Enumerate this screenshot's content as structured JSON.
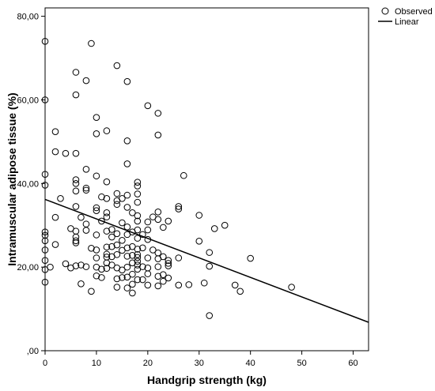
{
  "chart_data": {
    "type": "scatter",
    "xlabel": "Handgrip strength (kg)",
    "ylabel": "Intramuscular adipose tissue (%)",
    "xlim": [
      0,
      63
    ],
    "ylim": [
      0,
      82
    ],
    "x_ticks": [
      0,
      10,
      20,
      30,
      40,
      50,
      60
    ],
    "x_tick_labels": [
      "0",
      "10",
      "20",
      "30",
      "40",
      "50",
      "60"
    ],
    "y_ticks": [
      0,
      20,
      40,
      60,
      80
    ],
    "y_tick_labels": [
      ",00",
      "20,00",
      "40,00",
      "60,00",
      "80,00"
    ],
    "grid": false,
    "legend_position": "top-right, outside plot",
    "series": [
      {
        "name": "Observed",
        "kind": "markers",
        "marker": "open-circle",
        "points": [
          [
            0,
            74.0
          ],
          [
            0,
            60.0
          ],
          [
            0,
            42.2
          ],
          [
            0,
            39.6
          ],
          [
            0,
            28.4
          ],
          [
            0,
            27.6
          ],
          [
            0,
            26.3
          ],
          [
            0,
            24.1
          ],
          [
            0,
            21.6
          ],
          [
            0,
            19.4
          ],
          [
            0,
            16.4
          ],
          [
            1,
            20.0
          ],
          [
            2,
            52.4
          ],
          [
            2,
            47.6
          ],
          [
            2,
            31.9
          ],
          [
            2,
            25.4
          ],
          [
            3,
            36.4
          ],
          [
            4,
            47.2
          ],
          [
            4,
            20.8
          ],
          [
            5,
            29.2
          ],
          [
            5,
            19.8
          ],
          [
            6,
            61.2
          ],
          [
            6,
            66.6
          ],
          [
            6,
            47.2
          ],
          [
            6,
            40.9
          ],
          [
            6,
            40.0
          ],
          [
            6,
            38.2
          ],
          [
            6,
            34.5
          ],
          [
            6,
            28.6
          ],
          [
            6,
            27.2
          ],
          [
            6,
            26.3
          ],
          [
            6,
            25.8
          ],
          [
            6,
            20.3
          ],
          [
            7,
            31.9
          ],
          [
            7,
            20.5
          ],
          [
            7,
            16.0
          ],
          [
            8,
            64.6
          ],
          [
            8,
            43.4
          ],
          [
            8,
            38.9
          ],
          [
            8,
            38.4
          ],
          [
            8,
            30.3
          ],
          [
            8,
            28.8
          ],
          [
            8,
            20.1
          ],
          [
            9,
            73.5
          ],
          [
            9,
            24.5
          ],
          [
            9,
            14.2
          ],
          [
            10,
            55.8
          ],
          [
            10,
            51.9
          ],
          [
            10,
            41.8
          ],
          [
            10,
            34.2
          ],
          [
            10,
            33.5
          ],
          [
            10,
            27.7
          ],
          [
            10,
            24.1
          ],
          [
            10,
            22.2
          ],
          [
            10,
            20.0
          ],
          [
            10,
            17.9
          ],
          [
            11,
            36.8
          ],
          [
            11,
            31.0
          ],
          [
            11,
            19.5
          ],
          [
            11,
            17.5
          ],
          [
            12,
            52.6
          ],
          [
            12,
            40.4
          ],
          [
            12,
            36.4
          ],
          [
            12,
            33.0
          ],
          [
            12,
            32.0
          ],
          [
            12,
            28.6
          ],
          [
            12,
            24.8
          ],
          [
            12,
            23.1
          ],
          [
            12,
            22.4
          ],
          [
            12,
            21.0
          ],
          [
            12,
            19.7
          ],
          [
            13,
            29.0
          ],
          [
            13,
            27.2
          ],
          [
            13,
            24.9
          ],
          [
            13,
            22.5
          ],
          [
            13,
            20.5
          ],
          [
            14,
            68.2
          ],
          [
            14,
            37.6
          ],
          [
            14,
            35.9
          ],
          [
            14,
            35.0
          ],
          [
            14,
            28.0
          ],
          [
            14,
            25.3
          ],
          [
            14,
            23.0
          ],
          [
            14,
            19.8
          ],
          [
            14,
            17.2
          ],
          [
            14,
            15.2
          ],
          [
            15,
            36.4
          ],
          [
            15,
            30.6
          ],
          [
            15,
            26.4
          ],
          [
            15,
            24.0
          ],
          [
            15,
            19.3
          ],
          [
            15,
            17.5
          ],
          [
            16,
            64.4
          ],
          [
            16,
            50.2
          ],
          [
            16,
            44.7
          ],
          [
            16,
            37.2
          ],
          [
            16,
            34.3
          ],
          [
            16,
            29.6
          ],
          [
            16,
            27.8
          ],
          [
            16,
            24.6
          ],
          [
            16,
            22.6
          ],
          [
            16,
            20.0
          ],
          [
            16,
            17.6
          ],
          [
            16,
            15.0
          ],
          [
            17,
            33.0
          ],
          [
            17,
            28.4
          ],
          [
            17,
            24.9
          ],
          [
            17,
            22.8
          ],
          [
            17,
            21.0
          ],
          [
            17,
            18.3
          ],
          [
            17,
            15.9
          ],
          [
            17,
            13.8
          ],
          [
            18,
            40.3
          ],
          [
            18,
            39.4
          ],
          [
            18,
            37.5
          ],
          [
            18,
            35.5
          ],
          [
            18,
            32.3
          ],
          [
            18,
            31.0
          ],
          [
            18,
            28.9
          ],
          [
            18,
            26.9
          ],
          [
            18,
            24.3
          ],
          [
            18,
            23.0
          ],
          [
            18,
            22.3
          ],
          [
            18,
            21.4
          ],
          [
            18,
            20.5
          ],
          [
            18,
            19.5
          ],
          [
            18,
            17.0
          ],
          [
            19,
            27.8
          ],
          [
            19,
            24.6
          ],
          [
            19,
            20.1
          ],
          [
            19,
            17.0
          ],
          [
            20,
            58.6
          ],
          [
            20,
            30.8
          ],
          [
            20,
            28.9
          ],
          [
            20,
            26.6
          ],
          [
            20,
            22.2
          ],
          [
            20,
            19.8
          ],
          [
            20,
            18.4
          ],
          [
            20,
            15.7
          ],
          [
            21,
            32.0
          ],
          [
            21,
            24.1
          ],
          [
            22,
            56.8
          ],
          [
            22,
            51.6
          ],
          [
            22,
            33.2
          ],
          [
            22,
            31.4
          ],
          [
            22,
            23.4
          ],
          [
            22,
            22.0
          ],
          [
            22,
            20.1
          ],
          [
            22,
            17.8
          ],
          [
            22,
            15.5
          ],
          [
            23,
            29.5
          ],
          [
            23,
            22.5
          ],
          [
            23,
            18.2
          ],
          [
            23,
            16.6
          ],
          [
            24,
            31.0
          ],
          [
            24,
            21.6
          ],
          [
            24,
            20.3
          ],
          [
            24,
            17.4
          ],
          [
            24,
            20.9
          ],
          [
            26,
            34.5
          ],
          [
            26,
            33.9
          ],
          [
            26,
            22.2
          ],
          [
            26,
            15.7
          ],
          [
            27,
            41.9
          ],
          [
            28,
            15.8
          ],
          [
            30,
            32.4
          ],
          [
            30,
            26.2
          ],
          [
            31,
            16.2
          ],
          [
            32,
            23.5
          ],
          [
            32,
            20.2
          ],
          [
            32,
            8.4
          ],
          [
            33,
            29.2
          ],
          [
            35,
            30.0
          ],
          [
            37,
            15.7
          ],
          [
            38,
            14.2
          ],
          [
            40,
            22.1
          ],
          [
            48,
            15.2
          ]
        ]
      },
      {
        "name": "Linear",
        "kind": "line",
        "x": [
          0,
          63
        ],
        "y": [
          36.2,
          6.8
        ]
      }
    ]
  }
}
